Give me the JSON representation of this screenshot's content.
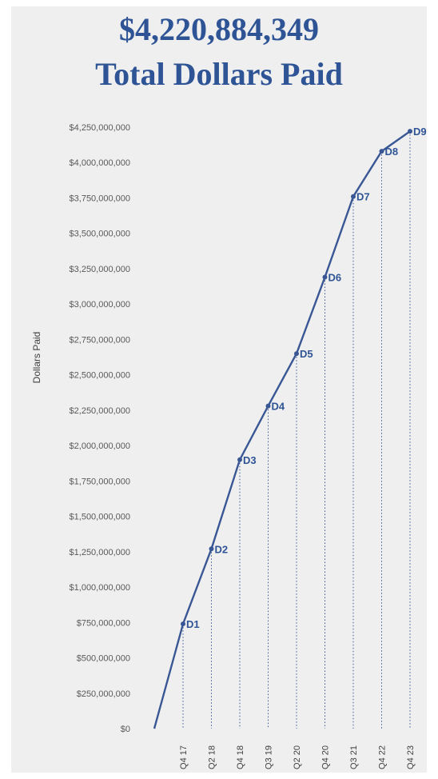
{
  "header": {
    "line1": "$4,220,884,349",
    "line2": "Total Dollars Paid"
  },
  "colors": {
    "series": "#3a5795",
    "title": "#2e5496",
    "background": "#efefef"
  },
  "chart_data": {
    "type": "line",
    "title": "$4,220,884,349 Total Dollars Paid",
    "xlabel": "",
    "ylabel": "Dollars Paid",
    "ylim": [
      0,
      4250000000
    ],
    "yticks": [
      0,
      250000000,
      500000000,
      750000000,
      1000000000,
      1250000000,
      1500000000,
      1750000000,
      2000000000,
      2250000000,
      2500000000,
      2750000000,
      3000000000,
      3250000000,
      3500000000,
      3750000000,
      4000000000,
      4250000000
    ],
    "ytick_labels": [
      "$0",
      "$250,000,000",
      "$500,000,000",
      "$750,000,000",
      "$1,000,000,000",
      "$1,250,000,000",
      "$1,500,000,000",
      "$1,750,000,000",
      "$2,000,000,000",
      "$2,250,000,000",
      "$2,500,000,000",
      "$2,750,000,000",
      "$3,000,000,000",
      "$3,250,000,000",
      "$3,500,000,000",
      "$3,750,000,000",
      "$4,000,000,000",
      "$4,250,000,000"
    ],
    "categories": [
      "Q4 17",
      "Q2 18",
      "Q4 18",
      "Q3 19",
      "Q2 20",
      "Q4 20",
      "Q3 21",
      "Q4 22",
      "Q4 23"
    ],
    "points": [
      {
        "label": "D1",
        "category": "Q4 17",
        "value": 740000000
      },
      {
        "label": "D2",
        "category": "Q2 18",
        "value": 1270000000
      },
      {
        "label": "D3",
        "category": "Q4 18",
        "value": 1900000000
      },
      {
        "label": "D4",
        "category": "Q3 19",
        "value": 2280000000
      },
      {
        "label": "D5",
        "category": "Q2 20",
        "value": 2650000000
      },
      {
        "label": "D6",
        "category": "Q4 20",
        "value": 3190000000
      },
      {
        "label": "D7",
        "category": "Q3 21",
        "value": 3760000000
      },
      {
        "label": "D8",
        "category": "Q4 22",
        "value": 4080000000
      },
      {
        "label": "D9",
        "category": "Q4 23",
        "value": 4220884349
      }
    ],
    "line_origin_value": 0,
    "grid": false,
    "drop_lines": true,
    "legend": "none"
  }
}
